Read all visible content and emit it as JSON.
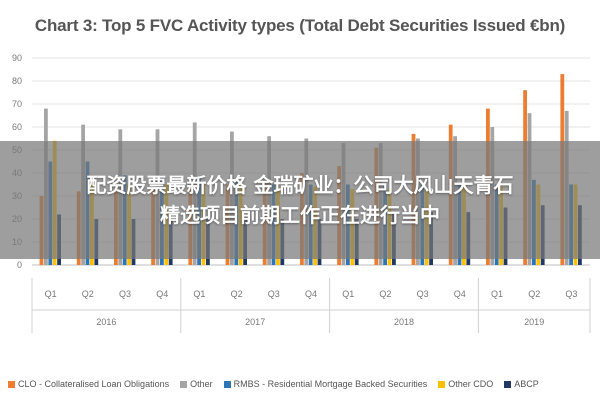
{
  "banner": {
    "line1": "配资股票最新价格 金瑞矿业：公司大风山天青石",
    "line2": "精选项目前期工作正在进行当中"
  },
  "chart_data": {
    "type": "bar",
    "title": "Chart 3: Top 5 FVC Activity types (Total Debt Securities Issued €bn)",
    "ylim": [
      0,
      90
    ],
    "yticks": [
      0,
      10,
      20,
      30,
      40,
      50,
      60,
      70,
      80,
      90
    ],
    "grid": true,
    "legend_position": "bottom",
    "categories": [
      "Q1",
      "Q2",
      "Q3",
      "Q4",
      "Q1",
      "Q2",
      "Q3",
      "Q4",
      "Q1",
      "Q2",
      "Q3",
      "Q4",
      "Q1",
      "Q2",
      "Q3"
    ],
    "groups": [
      {
        "label": "2016",
        "count": 4
      },
      {
        "label": "2017",
        "count": 4
      },
      {
        "label": "2018",
        "count": 4
      },
      {
        "label": "2019",
        "count": 3
      }
    ],
    "series": [
      {
        "name": "CLO - Collateralised Loan Obligations",
        "color": "#ed7d31",
        "values": [
          30,
          32,
          33,
          33,
          34,
          35,
          37,
          40,
          43,
          51,
          57,
          61,
          68,
          76,
          83
        ]
      },
      {
        "name": "Other",
        "color": "#a5a5a5",
        "values": [
          68,
          61,
          59,
          59,
          62,
          58,
          56,
          55,
          53,
          53,
          55,
          56,
          60,
          66,
          67
        ]
      },
      {
        "name": "RMBS - Residential Mortgage Backed Securities",
        "color": "#2e75b6",
        "values": [
          45,
          45,
          39,
          39,
          38,
          37,
          35,
          35,
          35,
          35,
          35,
          35,
          35,
          37,
          35
        ]
      },
      {
        "name": "Other CDO",
        "color": "#ffc000",
        "values": [
          54,
          39,
          35,
          35,
          35,
          35,
          34,
          34,
          33,
          33,
          33,
          34,
          34,
          35,
          35
        ]
      },
      {
        "name": "ABCP",
        "color": "#1f3864",
        "values": [
          22,
          20,
          20,
          20,
          20,
          20,
          20,
          20,
          20,
          23,
          23,
          23,
          25,
          26,
          26
        ]
      }
    ]
  }
}
